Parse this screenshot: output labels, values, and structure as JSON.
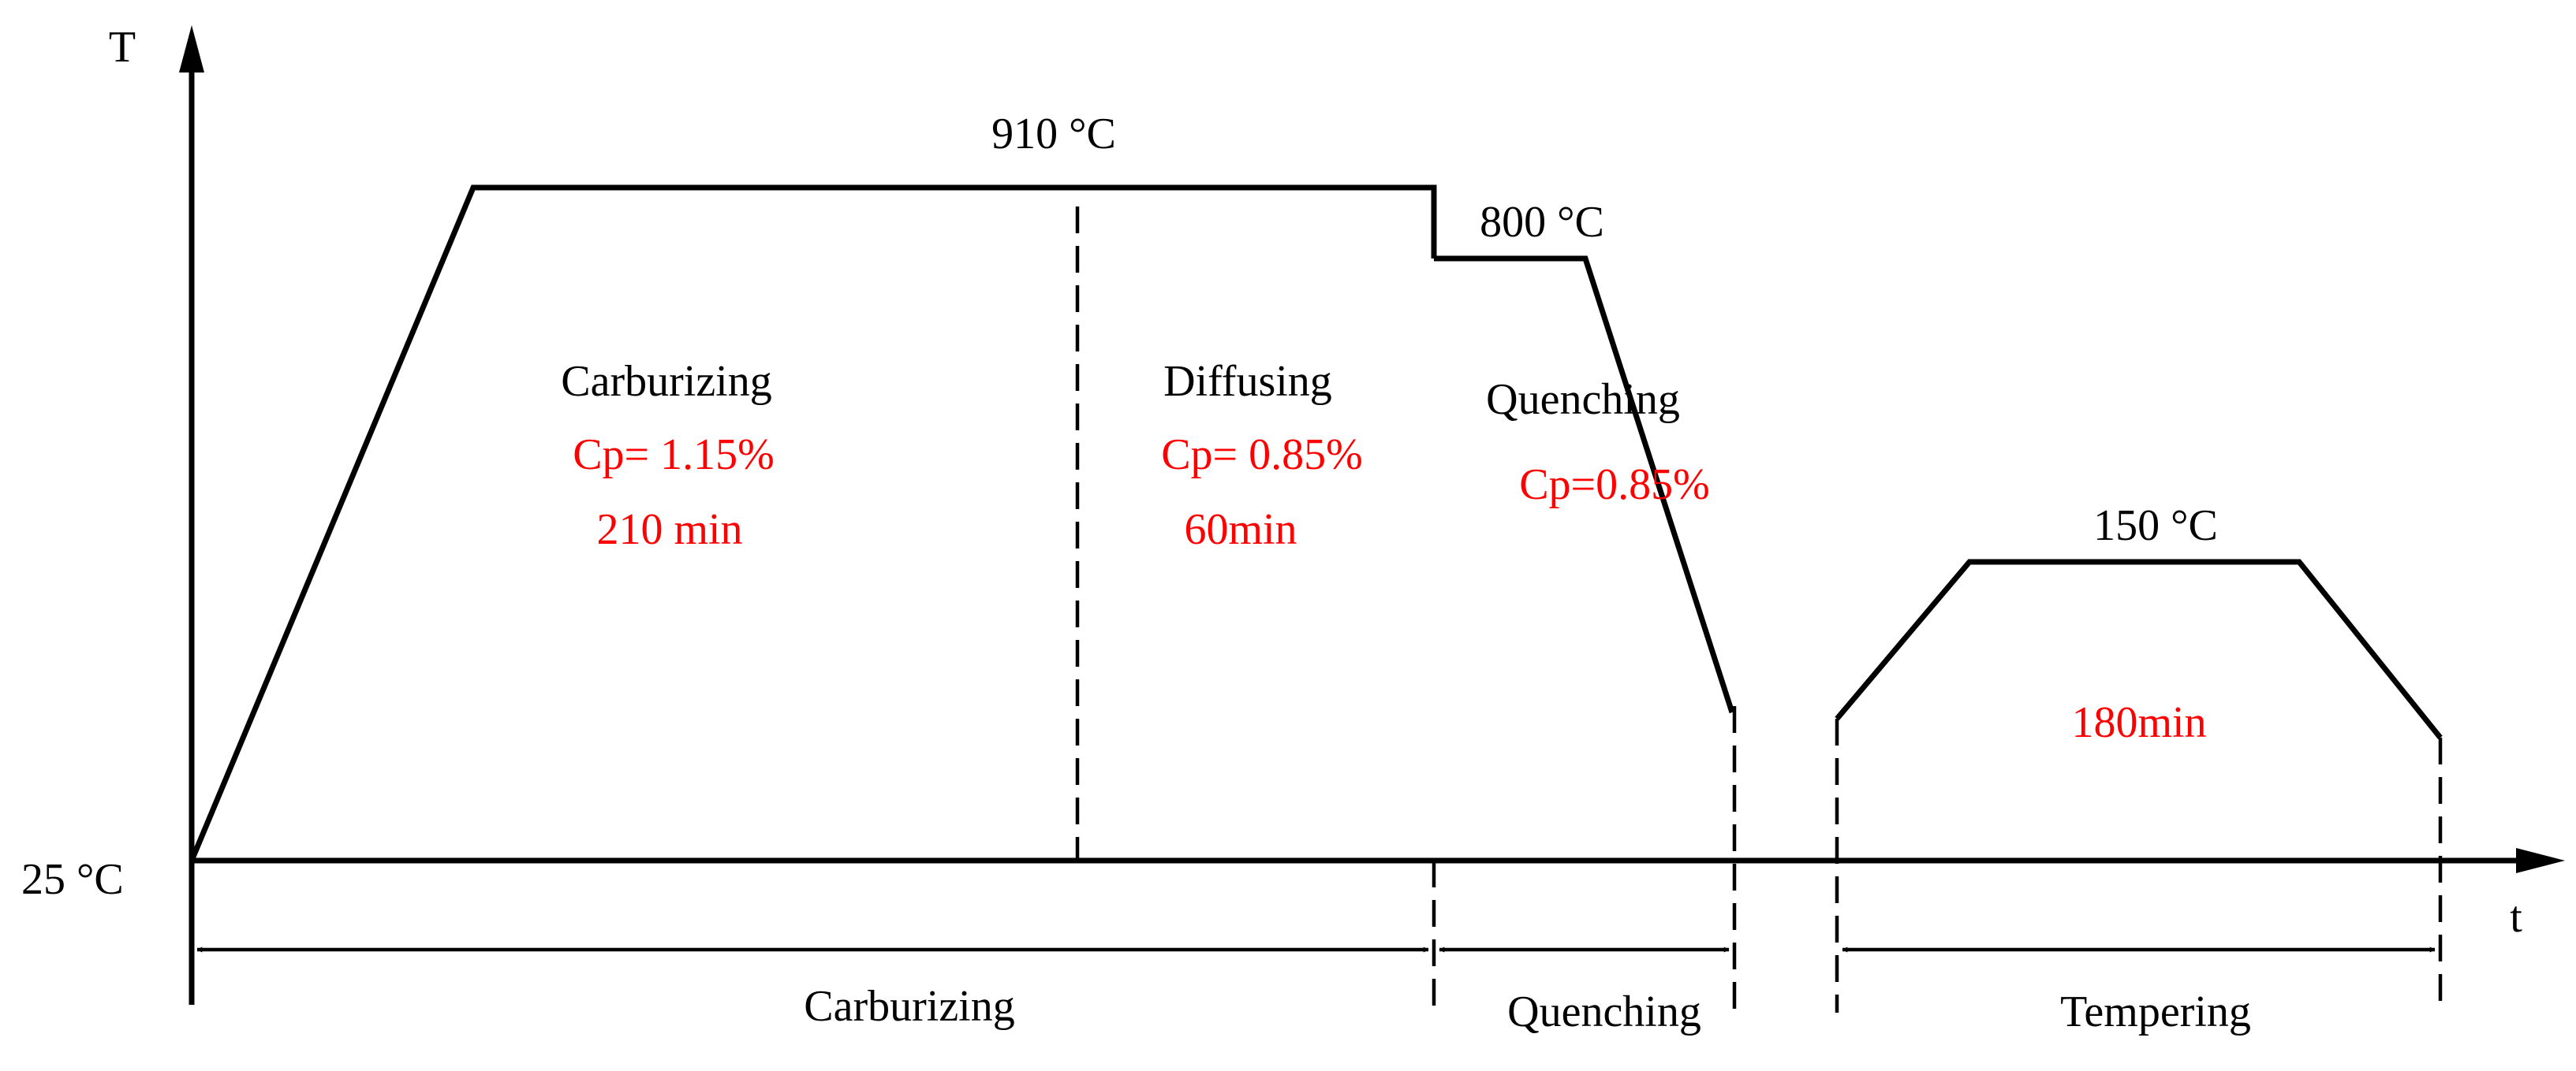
{
  "axes": {
    "y_label": "T",
    "x_label": "t",
    "origin_temp": "25 °C"
  },
  "colors": {
    "line": "#000000",
    "highlight": "#ff0000"
  },
  "temperatures": {
    "carburizing": "910 °C",
    "quenching": "800 °C",
    "tempering": "150 °C"
  },
  "stages": {
    "carburizing": {
      "name": "Carburizing",
      "cp": "Cp= 1.15%",
      "time": "210 min"
    },
    "diffusing": {
      "name": "Diffusing",
      "cp": "Cp= 0.85%",
      "time": "60min"
    },
    "quenching": {
      "name": "Quenching",
      "cp": "Cp=0.85%"
    },
    "tempering": {
      "time": "180min"
    }
  },
  "spans": {
    "carburizing": "Carburizing",
    "quenching": "Quenching",
    "tempering": "Tempering"
  }
}
